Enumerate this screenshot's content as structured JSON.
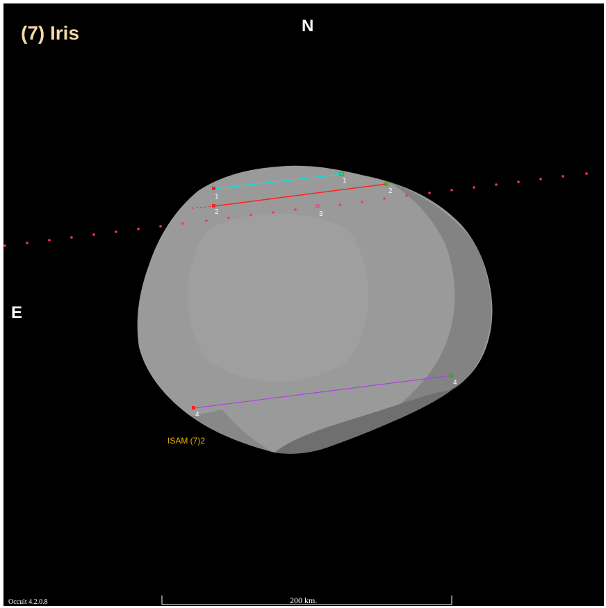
{
  "title": "(7) Iris",
  "directions": {
    "north": "N",
    "east": "E"
  },
  "model_label": "ISAM (7)2",
  "version_label": "Occult 4.2.0.8",
  "scale": {
    "label": "200 km."
  },
  "colors": {
    "background": "#000000",
    "body": "#9a9a9a",
    "chord_1": "#00e5e5",
    "chord_2": "#ff2020",
    "chord_4": "#b040e0",
    "miss_path": "#ff2a8a",
    "disappear_marker": "#ff2020",
    "reappear_marker": "#00c000"
  },
  "chords": [
    {
      "id": "1",
      "color_key": "chord_1",
      "start_label": "1",
      "end_label": "1"
    },
    {
      "id": "2",
      "color_key": "chord_2",
      "start_label": "2",
      "end_label": "2"
    },
    {
      "id": "4",
      "color_key": "chord_4",
      "start_label": "4",
      "end_label": "4"
    }
  ],
  "miss_label": "3"
}
